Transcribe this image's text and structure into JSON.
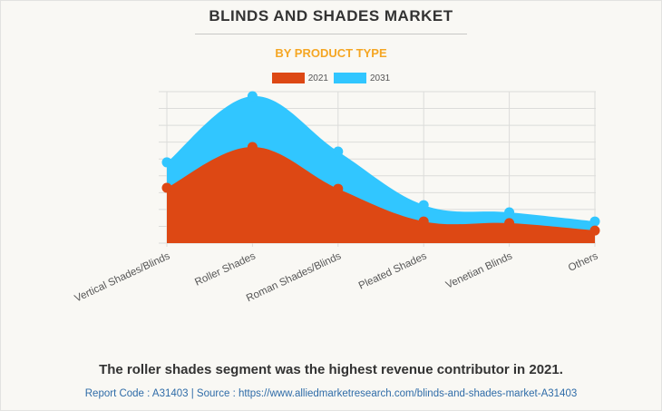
{
  "header": {
    "title": "BLINDS AND SHADES MARKET",
    "subtitle": "BY PRODUCT TYPE"
  },
  "colors": {
    "series_2021": "#dd4814",
    "series_2031": "#31c6ff",
    "subtitle": "#f5a623",
    "grid": "#dcdcda",
    "footer": "#2f6ca8"
  },
  "chart_data": {
    "type": "area",
    "title": "BLINDS AND SHADES MARKET",
    "subtitle": "BY PRODUCT TYPE",
    "categories": [
      "Vertical Shades/Blinds",
      "Roller Shades",
      "Roman Shades/Blinds",
      "Pleated Shades",
      "Venetian Blinds",
      "Others"
    ],
    "series": [
      {
        "name": "2031",
        "values": [
          4.8,
          8.73,
          5.44,
          2.26,
          1.83,
          1.29
        ]
      },
      {
        "name": "2021",
        "values": [
          3.29,
          5.71,
          3.23,
          1.29,
          1.19,
          0.75
        ]
      }
    ],
    "xlabel": "",
    "ylabel": "",
    "ylim": [
      0,
      9
    ],
    "y_tick_labels_shown": false,
    "grid": true,
    "legend_position": "top-center",
    "legend": [
      "2021",
      "2031"
    ]
  },
  "caption": "The roller shades segment was the highest revenue contributor in 2021.",
  "footer": "Report Code : A31403  |  Source : https://www.alliedmarketresearch.com/blinds-and-shades-market-A31403"
}
